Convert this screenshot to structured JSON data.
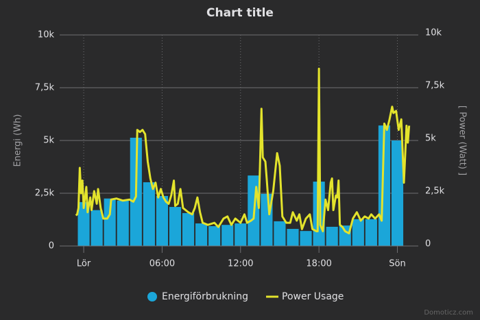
{
  "chart_data": {
    "type": "combo",
    "title": "Chart title",
    "y_label": "Energi (Wh)",
    "y2_label": "[ Power (Watt) ]",
    "credits": "Domoticz.com",
    "xlim": [
      -1.84,
      25.6
    ],
    "xticks": [
      {
        "value": 0,
        "label": "Lör"
      },
      {
        "value": 6,
        "label": "06:00"
      },
      {
        "value": 12,
        "label": "12:00"
      },
      {
        "value": 18,
        "label": "18:00"
      },
      {
        "value": 24,
        "label": "Sön"
      }
    ],
    "ylim": [
      0,
      10000
    ],
    "yticks": [
      0,
      {
        "value": 2500,
        "label": "2,5k"
      },
      {
        "value": 5000,
        "label": "5k"
      },
      {
        "value": 7500,
        "label": "7,5k"
      },
      {
        "value": 10000,
        "label": "10k"
      }
    ],
    "y2lim": [
      0,
      10000
    ],
    "y2ticks": [
      0,
      {
        "value": 2500,
        "label": "2,5k"
      },
      {
        "value": 5000,
        "label": "5k"
      },
      {
        "value": 7500,
        "label": "7,5k"
      },
      {
        "value": 10000,
        "label": "10k"
      }
    ],
    "grid": true,
    "legend": "bottom",
    "series": [
      {
        "name": "Energiförbrukning",
        "type": "bar",
        "color": "#1ba6d9",
        "x": [
          0,
          1,
          2,
          3,
          4,
          5,
          6,
          7,
          8,
          9,
          10,
          11,
          12,
          13,
          14,
          15,
          16,
          17,
          18,
          19,
          20,
          21,
          22,
          23,
          24
        ],
        "values": [
          2080,
          1700,
          2250,
          2150,
          5130,
          3020,
          2370,
          1850,
          1560,
          1070,
          940,
          1000,
          1070,
          3340,
          2470,
          1170,
          810,
          710,
          3050,
          910,
          970,
          1270,
          1270,
          5710,
          5000
        ]
      },
      {
        "name": "Power Usage",
        "type": "line",
        "color": "#e3e32c",
        "axis": "y2",
        "x": [
          -0.6,
          -0.5,
          -0.4,
          -0.3,
          -0.2,
          -0.1,
          0,
          0.2,
          0.3,
          0.5,
          0.6,
          0.8,
          1.0,
          1.1,
          1.3,
          1.5,
          1.8,
          2.0,
          2.1,
          2.5,
          3.0,
          3.5,
          3.8,
          4.0,
          4.1,
          4.3,
          4.5,
          4.7,
          4.9,
          5.1,
          5.3,
          5.5,
          5.7,
          5.9,
          6.1,
          6.3,
          6.5,
          6.7,
          6.9,
          7.0,
          7.2,
          7.4,
          7.6,
          7.8,
          8.0,
          8.3,
          8.5,
          8.7,
          8.9,
          9.1,
          9.5,
          10.0,
          10.3,
          10.7,
          11.0,
          11.3,
          11.6,
          12.0,
          12.3,
          12.5,
          12.8,
          13.0,
          13.2,
          13.4,
          13.5,
          13.6,
          13.7,
          13.9,
          14.0,
          14.2,
          14.5,
          14.8,
          15.0,
          15.2,
          15.5,
          15.8,
          16.0,
          16.3,
          16.5,
          16.7,
          17.0,
          17.3,
          17.5,
          17.8,
          17.9,
          18.0,
          18.1,
          18.3,
          18.5,
          18.7,
          18.9,
          19.0,
          19.1,
          19.3,
          19.4,
          19.5,
          19.6,
          19.8,
          20.0,
          20.3,
          20.6,
          20.9,
          21.2,
          21.5,
          21.8,
          22.0,
          22.3,
          22.6,
          22.8,
          23.0,
          23.2,
          23.4,
          23.6,
          23.7,
          23.9,
          24.1,
          24.3,
          24.5,
          24.7,
          24.8,
          24.9
        ],
        "values": [
          1450,
          1500,
          1800,
          3700,
          2500,
          3100,
          1800,
          2800,
          1600,
          2300,
          1700,
          2600,
          2000,
          2700,
          1800,
          1300,
          1300,
          1500,
          2200,
          2250,
          2150,
          2200,
          2100,
          2350,
          5500,
          5400,
          5500,
          5300,
          4000,
          3200,
          2700,
          3000,
          2300,
          2700,
          2300,
          2100,
          2000,
          2400,
          3100,
          1900,
          2000,
          2700,
          1800,
          1700,
          1600,
          1500,
          1800,
          2300,
          1600,
          1100,
          1000,
          1100,
          900,
          1300,
          1400,
          1000,
          1300,
          1100,
          1500,
          1100,
          1200,
          1300,
          2800,
          1800,
          4100,
          6500,
          4200,
          4000,
          3200,
          1500,
          2600,
          4400,
          3800,
          1400,
          1100,
          1100,
          1600,
          1200,
          1500,
          800,
          1300,
          1500,
          800,
          700,
          700,
          8400,
          1000,
          700,
          2200,
          1700,
          3000,
          3200,
          1700,
          2400,
          2300,
          3100,
          1000,
          900,
          700,
          600,
          1300,
          1600,
          1200,
          1400,
          1300,
          1500,
          1300,
          1500,
          1200,
          5800,
          5500,
          6000,
          6600,
          6300,
          6400,
          5500,
          6000,
          3000,
          5700,
          4900,
          5700
        ]
      }
    ]
  }
}
